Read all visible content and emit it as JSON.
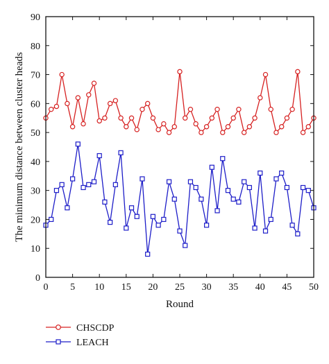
{
  "chart_data": {
    "type": "line",
    "title": "",
    "xlabel": "Round",
    "ylabel": "The minimum distance between cluster heads",
    "xlim": [
      0,
      50
    ],
    "ylim": [
      0,
      90
    ],
    "xticks": [
      0,
      5,
      10,
      15,
      20,
      25,
      30,
      35,
      40,
      45,
      50
    ],
    "yticks": [
      0,
      10,
      20,
      30,
      40,
      50,
      60,
      70,
      80,
      90
    ],
    "grid": false,
    "legend_position": "below plot, left",
    "x": [
      0,
      1,
      2,
      3,
      4,
      5,
      6,
      7,
      8,
      9,
      10,
      11,
      12,
      13,
      14,
      15,
      16,
      17,
      18,
      19,
      20,
      21,
      22,
      23,
      24,
      25,
      26,
      27,
      28,
      29,
      30,
      31,
      32,
      33,
      34,
      35,
      36,
      37,
      38,
      39,
      40,
      41,
      42,
      43,
      44,
      45,
      46,
      47,
      48,
      49,
      50
    ],
    "series": [
      {
        "name": "CHSCDP",
        "color": "#d62020",
        "marker": "circle",
        "values": [
          55,
          58,
          59,
          70,
          60,
          52,
          62,
          53,
          63,
          67,
          54,
          55,
          60,
          61,
          55,
          52,
          55,
          51,
          58,
          60,
          55,
          51,
          53,
          50,
          52,
          71,
          55,
          58,
          53,
          50,
          52,
          55,
          58,
          50,
          52,
          55,
          58,
          50,
          52,
          55,
          62,
          70,
          58,
          50,
          52,
          55,
          58,
          71,
          50,
          52,
          55
        ]
      },
      {
        "name": "LEACH",
        "color": "#1c1cc8",
        "marker": "square",
        "values": [
          18,
          20,
          30,
          32,
          24,
          34,
          46,
          31,
          32,
          33,
          42,
          26,
          19,
          32,
          43,
          17,
          24,
          21,
          34,
          8,
          21,
          18,
          20,
          33,
          27,
          16,
          11,
          33,
          31,
          27,
          18,
          38,
          23,
          41,
          30,
          27,
          26,
          33,
          31,
          17,
          36,
          16,
          20,
          34,
          36,
          31,
          18,
          15,
          31,
          30,
          24
        ]
      }
    ]
  }
}
